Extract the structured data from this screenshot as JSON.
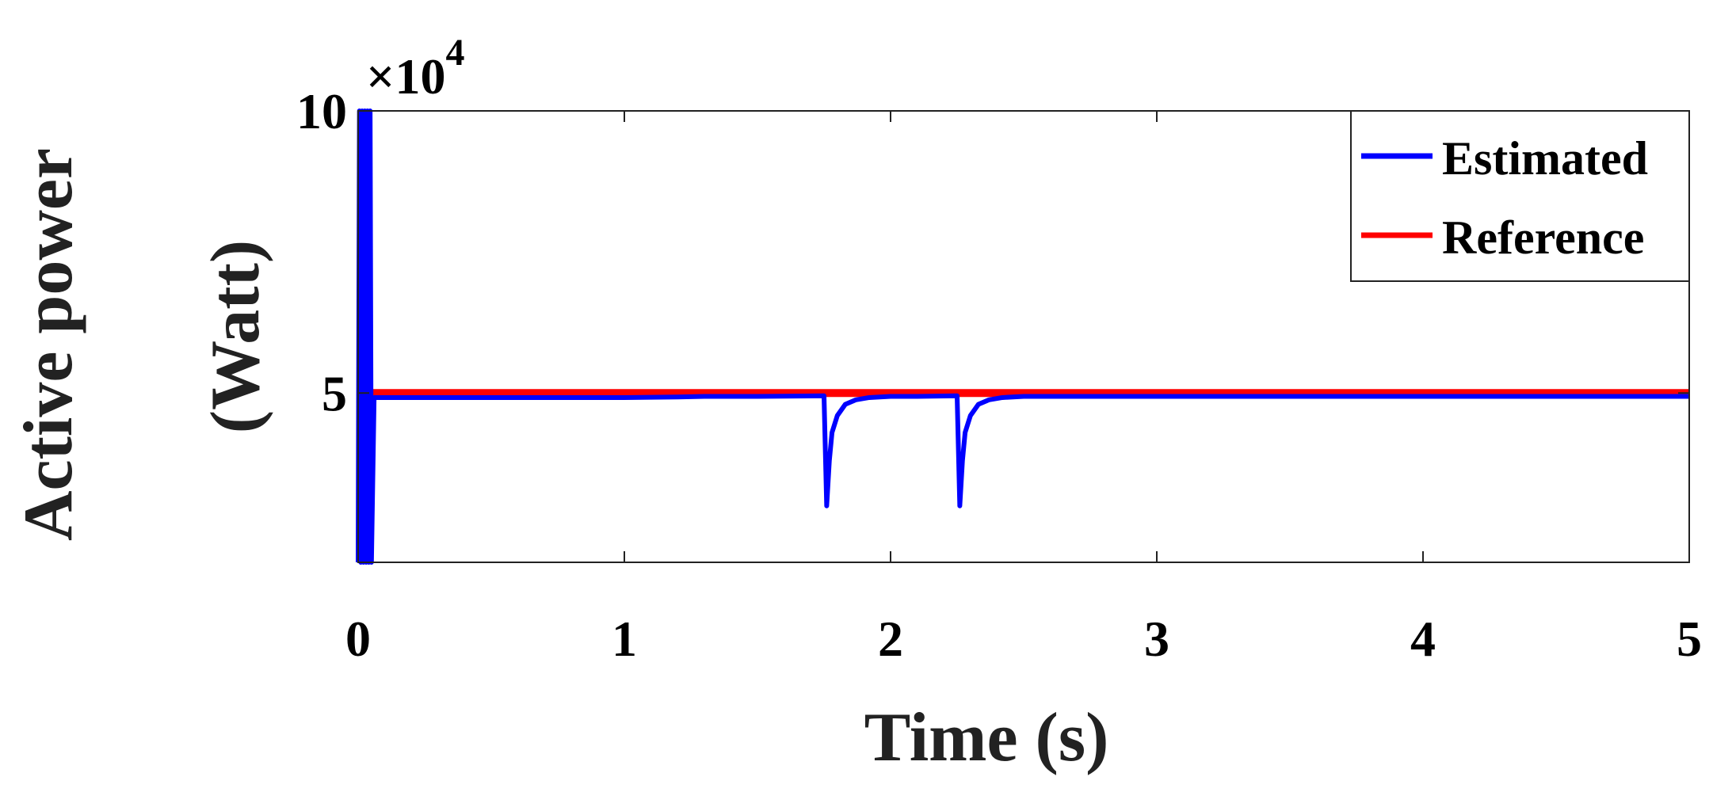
{
  "chart_data": {
    "type": "line",
    "xlabel": "Time (s)",
    "ylabel_lines": [
      "Active power",
      "(Watt)"
    ],
    "y_multiplier": {
      "base": "×10",
      "exponent": "4"
    },
    "xlim": [
      0,
      5
    ],
    "ylim": [
      2,
      10
    ],
    "xticks": [
      0,
      1,
      2,
      3,
      4,
      5
    ],
    "xtick_labels": [
      "0",
      "1",
      "2",
      "3",
      "4",
      "5"
    ],
    "yticks": [
      5,
      10
    ],
    "ytick_labels": [
      "5",
      "10"
    ],
    "grid": false,
    "legend_placement": "top-right",
    "series": [
      {
        "name": "Estimated",
        "color": "#0000ff",
        "x": [
          0,
          0.005,
          0.01,
          0.015,
          0.02,
          0.025,
          0.03,
          0.035,
          0.04,
          0.045,
          0.05,
          0.06,
          0.1,
          0.5,
          1.0,
          1.2,
          1.3,
          1.5,
          1.749,
          1.75,
          1.76,
          1.77,
          1.78,
          1.8,
          1.83,
          1.87,
          1.92,
          2.0,
          2.1,
          2.249,
          2.25,
          2.26,
          2.27,
          2.28,
          2.3,
          2.33,
          2.37,
          2.42,
          2.5,
          2.7,
          3.0,
          4.0,
          5.0
        ],
        "y": [
          2.0,
          10.0,
          2.0,
          10.0,
          2.0,
          10.0,
          2.0,
          10.0,
          2.0,
          10.0,
          2.0,
          4.92,
          4.92,
          4.92,
          4.92,
          4.93,
          4.94,
          4.94,
          4.95,
          4.95,
          3.0,
          3.8,
          4.3,
          4.6,
          4.8,
          4.88,
          4.92,
          4.94,
          4.94,
          4.95,
          4.95,
          3.0,
          3.8,
          4.3,
          4.6,
          4.8,
          4.88,
          4.92,
          4.94,
          4.94,
          4.94,
          4.94,
          4.94
        ]
      },
      {
        "name": "Reference",
        "color": "#ff0000",
        "x": [
          0,
          5
        ],
        "y": [
          5.0,
          5.0
        ]
      }
    ]
  }
}
